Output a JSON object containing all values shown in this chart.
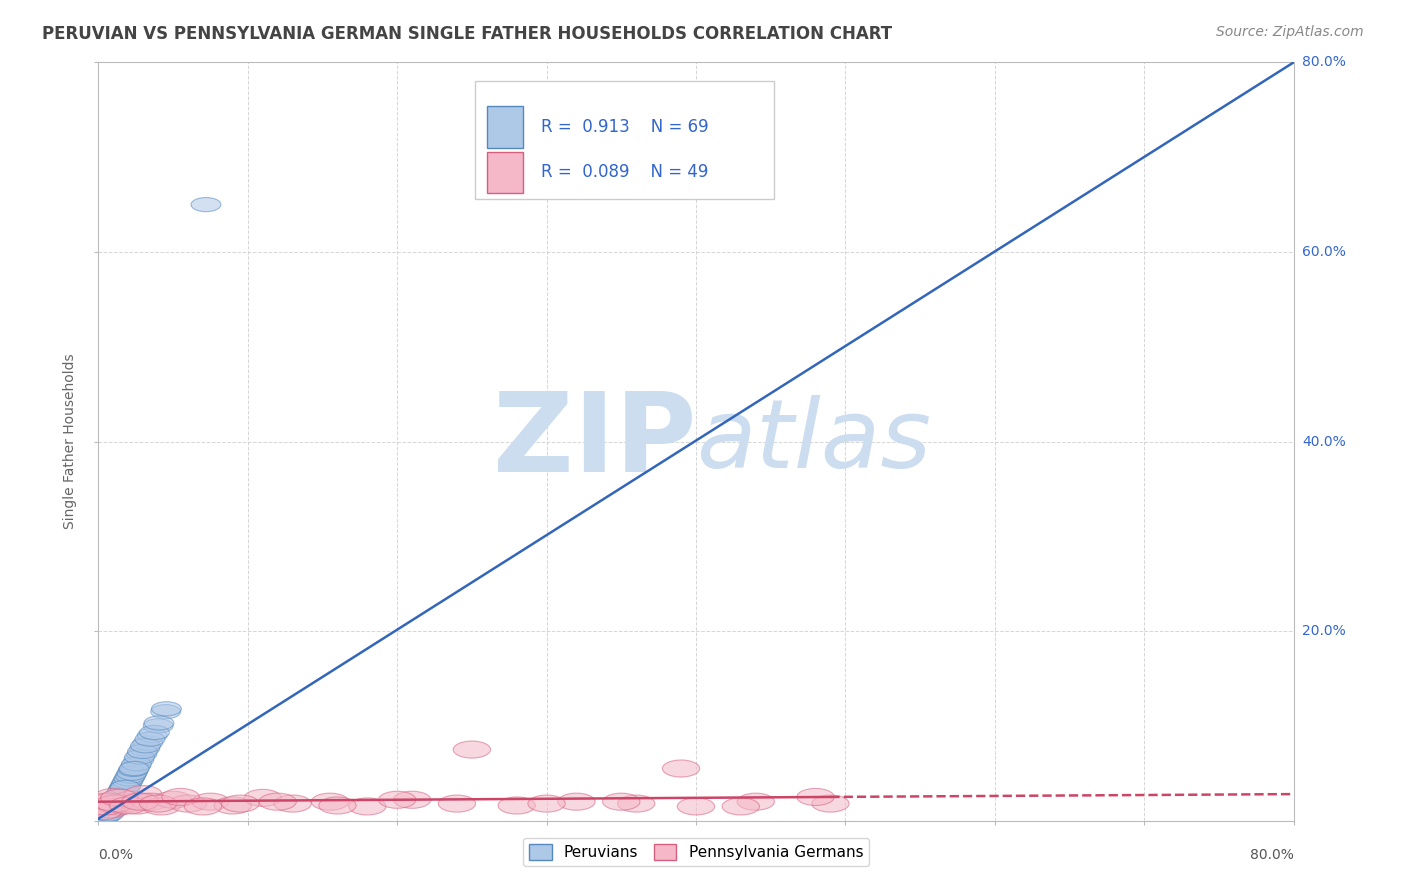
{
  "title": "PERUVIAN VS PENNSYLVANIA GERMAN SINGLE FATHER HOUSEHOLDS CORRELATION CHART",
  "source": "Source: ZipAtlas.com",
  "ylabel": "Single Father Households",
  "r_peruvian": 0.913,
  "n_peruvian": 69,
  "r_penn": 0.089,
  "n_penn": 49,
  "blue_fill": "#aec8e8",
  "blue_edge": "#5588bb",
  "pink_fill": "#f4b8c8",
  "pink_edge": "#d46080",
  "blue_line_color": "#3366bb",
  "pink_line_color": "#cc4466",
  "watermark_zip": "ZIP",
  "watermark_atlas": "atlas",
  "watermark_color": "#ccddf0",
  "background_color": "#ffffff",
  "grid_color": "#cccccc",
  "title_color": "#444444",
  "legend_text_color": "#3366cc",
  "axis_color": "#bbbbbb",
  "ytick_color": "#3366cc",
  "xmin": 0.0,
  "xmax": 80.0,
  "ymin": 0.0,
  "ymax": 80.0,
  "yticks": [
    0,
    20,
    40,
    60,
    80
  ],
  "xtick_positions": [
    0,
    10,
    20,
    30,
    40,
    50,
    60,
    70,
    80
  ],
  "peru_x": [
    0.2,
    0.3,
    0.4,
    0.5,
    0.6,
    0.7,
    0.8,
    0.9,
    1.0,
    1.1,
    1.2,
    1.3,
    1.4,
    1.5,
    1.6,
    1.7,
    1.8,
    1.9,
    2.0,
    2.1,
    2.2,
    2.3,
    2.5,
    2.7,
    2.9,
    3.1,
    3.3,
    3.6,
    4.0,
    4.5,
    0.1,
    0.15,
    0.25,
    0.35,
    0.45,
    0.55,
    0.65,
    0.75,
    0.85,
    0.95,
    1.05,
    1.15,
    1.25,
    1.35,
    1.45,
    1.55,
    1.65,
    1.75,
    1.85,
    1.95,
    2.05,
    2.15,
    2.25,
    2.35,
    2.55,
    2.75,
    2.95,
    3.15,
    3.45,
    3.75,
    4.05,
    4.55,
    0.3,
    0.5,
    0.7,
    1.2,
    1.8,
    2.4,
    7.2
  ],
  "peru_y": [
    0.3,
    0.4,
    0.5,
    0.6,
    0.8,
    1.0,
    1.2,
    1.4,
    1.6,
    1.8,
    2.0,
    2.2,
    2.5,
    2.8,
    3.1,
    3.4,
    3.7,
    4.0,
    4.3,
    4.6,
    4.9,
    5.2,
    5.8,
    6.4,
    7.0,
    7.6,
    8.2,
    9.0,
    10.0,
    11.5,
    0.2,
    0.25,
    0.35,
    0.45,
    0.55,
    0.7,
    0.85,
    1.05,
    1.25,
    1.45,
    1.65,
    1.85,
    2.1,
    2.35,
    2.6,
    2.9,
    3.2,
    3.5,
    3.8,
    4.1,
    4.4,
    4.7,
    5.0,
    5.4,
    6.0,
    6.7,
    7.3,
    7.9,
    8.6,
    9.3,
    10.3,
    11.8,
    0.3,
    0.5,
    0.7,
    2.0,
    3.5,
    5.5,
    65.0
  ],
  "penn_x": [
    0.2,
    0.4,
    0.6,
    0.8,
    1.0,
    1.3,
    1.6,
    1.9,
    2.2,
    2.6,
    3.0,
    3.5,
    4.2,
    5.0,
    6.0,
    7.5,
    9.0,
    11.0,
    13.0,
    15.5,
    18.0,
    21.0,
    24.0,
    28.0,
    32.0,
    36.0,
    40.0,
    44.0,
    49.0,
    0.3,
    0.5,
    0.7,
    1.1,
    1.4,
    2.0,
    2.8,
    4.0,
    5.5,
    7.0,
    9.5,
    12.0,
    16.0,
    20.0,
    25.0,
    30.0,
    35.0,
    39.0,
    43.0,
    48.0
  ],
  "penn_y": [
    1.5,
    2.0,
    1.8,
    1.2,
    2.5,
    1.5,
    2.0,
    1.8,
    2.2,
    1.6,
    2.8,
    2.0,
    1.5,
    2.2,
    1.8,
    2.0,
    1.6,
    2.4,
    1.8,
    2.0,
    1.5,
    2.2,
    1.8,
    1.6,
    2.0,
    1.8,
    1.5,
    2.0,
    1.8,
    1.0,
    1.5,
    2.0,
    1.8,
    2.4,
    1.6,
    2.0,
    1.8,
    2.5,
    1.5,
    1.8,
    2.0,
    1.6,
    2.2,
    7.5,
    1.8,
    2.0,
    5.5,
    1.5,
    2.5
  ],
  "blue_reg_x0": 0.0,
  "blue_reg_y0": 0.2,
  "blue_reg_x1": 80.0,
  "blue_reg_y1": 80.0,
  "pink_reg_x0": 0.0,
  "pink_reg_y0": 2.0,
  "pink_reg_x1_solid": 49.0,
  "pink_reg_y1_solid": 2.5,
  "pink_reg_x1_dashed": 80.0,
  "pink_reg_y1_dashed": 2.8
}
